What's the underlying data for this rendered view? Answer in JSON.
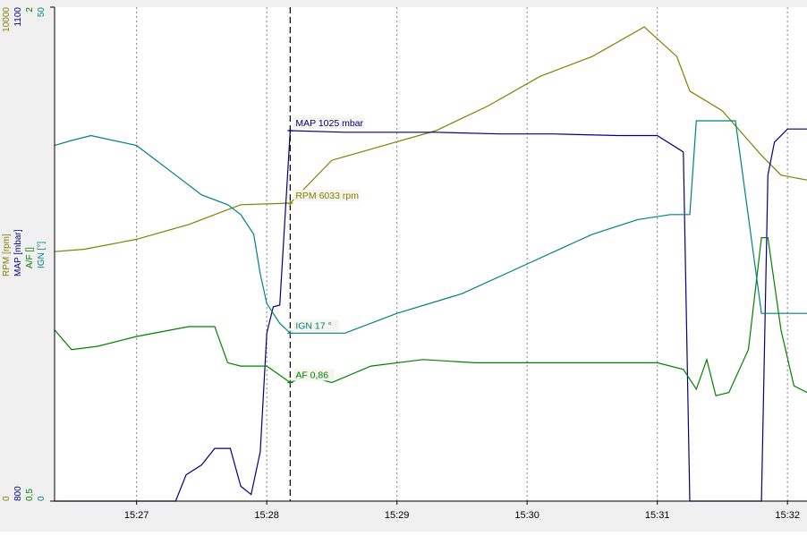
{
  "chart_data": {
    "type": "line",
    "x_unit": "time (hh:mm)",
    "x_ticks": [
      "15:27",
      "15:28",
      "15:29",
      "15:30",
      "15:31",
      "15:32"
    ],
    "x_tick_minutes": [
      27,
      28,
      29,
      30,
      31,
      32
    ],
    "xlim": [
      26.37,
      32.15
    ],
    "cursor_x": 28.18,
    "axes": [
      {
        "id": "rpm",
        "label": "RPM [rpm]",
        "min": "0",
        "max": "10000",
        "color": "#808000"
      },
      {
        "id": "map",
        "label": "MAP [mbar]",
        "min": "800",
        "max": "1100",
        "color": "#000080"
      },
      {
        "id": "af",
        "label": "A/F []",
        "min": "0,5",
        "max": "2",
        "color": "#008000"
      },
      {
        "id": "ign",
        "label": "IGN [°]",
        "min": "0",
        "max": "50",
        "color": "#008080"
      }
    ],
    "series": [
      {
        "name": "RPM",
        "axis": "rpm",
        "color": "#808000",
        "x": [
          26.37,
          26.6,
          27.0,
          27.4,
          27.8,
          28.18,
          28.5,
          28.9,
          29.3,
          29.7,
          30.1,
          30.5,
          30.9,
          31.15,
          31.25,
          31.5,
          31.8,
          31.95,
          32.15
        ],
        "y": [
          5050,
          5100,
          5300,
          5600,
          6000,
          6033,
          6900,
          7200,
          7500,
          8000,
          8600,
          9000,
          9600,
          9000,
          8300,
          7900,
          7000,
          6600,
          6500
        ]
      },
      {
        "name": "MAP",
        "axis": "map",
        "color": "#000080",
        "x": [
          26.37,
          27.3,
          27.38,
          27.5,
          27.6,
          27.72,
          27.8,
          27.88,
          27.95,
          28.0,
          28.05,
          28.1,
          28.18,
          28.6,
          29.3,
          29.8,
          30.2,
          30.7,
          31.0,
          31.2,
          31.25,
          31.3,
          31.58,
          31.8,
          31.85,
          31.9,
          32.0,
          32.15
        ],
        "y": [
          800,
          800,
          816,
          822,
          832,
          832,
          809,
          804,
          830,
          902,
          918,
          919,
          1025,
          1024,
          1024,
          1023,
          1023,
          1022,
          1022,
          1012,
          800,
          800,
          800,
          800,
          998,
          1018,
          1026,
          1026
        ]
      },
      {
        "name": "A/F",
        "axis": "af",
        "color": "#008000",
        "x": [
          26.37,
          26.5,
          26.7,
          27.0,
          27.4,
          27.6,
          27.7,
          27.8,
          28.0,
          28.18,
          28.3,
          28.5,
          28.8,
          29.2,
          29.6,
          30.0,
          30.4,
          30.8,
          31.0,
          31.2,
          31.3,
          31.38,
          31.45,
          31.55,
          31.7,
          31.8,
          31.85,
          31.95,
          32.05,
          32.15
        ],
        "y": [
          1.02,
          0.96,
          0.97,
          1.0,
          1.03,
          1.03,
          0.92,
          0.91,
          0.91,
          0.86,
          0.88,
          0.86,
          0.91,
          0.93,
          0.92,
          0.92,
          0.92,
          0.92,
          0.92,
          0.9,
          0.84,
          0.93,
          0.82,
          0.83,
          0.96,
          1.3,
          1.3,
          1.02,
          0.85,
          0.83
        ]
      },
      {
        "name": "IGN",
        "axis": "ign",
        "color": "#008080",
        "x": [
          26.37,
          26.5,
          26.65,
          27.0,
          27.3,
          27.5,
          27.7,
          27.8,
          27.9,
          27.95,
          28.0,
          28.1,
          28.18,
          28.6,
          29.0,
          29.5,
          30.0,
          30.5,
          30.85,
          31.1,
          31.25,
          31.3,
          31.6,
          31.8,
          31.85,
          31.9,
          32.15
        ],
        "y": [
          36,
          36.5,
          37,
          36,
          33,
          31,
          30,
          29,
          27,
          23,
          20,
          18,
          17,
          17,
          19,
          21,
          24,
          27,
          28.5,
          29,
          29,
          38.5,
          38.5,
          19,
          19,
          19,
          19
        ]
      }
    ],
    "annotations": [
      {
        "series": "MAP",
        "text": "MAP 1025 mbar",
        "x": 28.18,
        "y": 1025,
        "color": "#000080"
      },
      {
        "series": "RPM",
        "text": "RPM 6033 rpm",
        "x": 28.18,
        "y": 6033,
        "color": "#808000"
      },
      {
        "series": "IGN",
        "text": "IGN 17 °",
        "x": 28.18,
        "y": 17,
        "color": "#008080"
      },
      {
        "series": "A/F",
        "text": "AF 0,86",
        "x": 28.18,
        "y": 0.86,
        "color": "#008000"
      }
    ],
    "grid": true
  }
}
